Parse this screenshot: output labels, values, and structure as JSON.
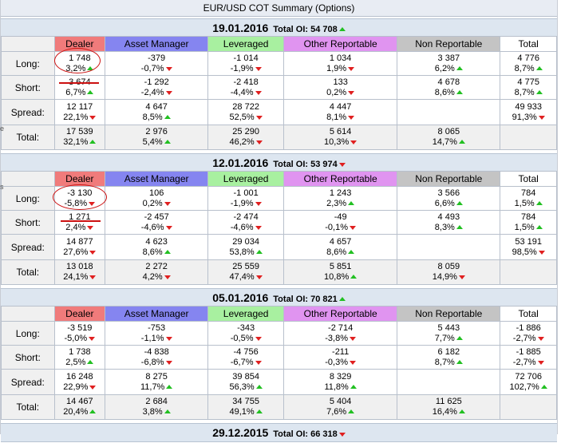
{
  "page_title": "EUR/USD COT Summary (Options)",
  "total_oi_label": "Total OI:",
  "headers": {
    "dealer": "Dealer",
    "asset_manager": "Asset Manager",
    "leveraged": "Leveraged",
    "other_reportable": "Other Reportable",
    "non_reportable": "Non Reportable",
    "total": "Total"
  },
  "row_labels": {
    "long": "Long:",
    "short": "Short:",
    "spread": "Spread:",
    "total": "Total:"
  },
  "colors": {
    "header_dealer": "#f07b7b",
    "header_asset_manager": "#8585f0",
    "header_leveraged": "#a8f0a0",
    "header_other_reportable": "#e094f0",
    "header_non_reportable": "#c4c4c4",
    "up": "#22c022",
    "down": "#e02020",
    "annotation": "#cc1010"
  },
  "icons": {
    "up": "triangle-up-icon",
    "down": "triangle-down-icon"
  },
  "sections": [
    {
      "date": "19.01.2016",
      "total_oi": "54 708",
      "total_oi_dir": "up",
      "rows": {
        "long": {
          "dealer": {
            "value": "1 748",
            "pct": "3,2%",
            "dir": "up"
          },
          "asset_manager": {
            "value": "-379",
            "pct": "-0,7%",
            "dir": "down"
          },
          "leveraged": {
            "value": "-1 014",
            "pct": "-1,9%",
            "dir": "down"
          },
          "other_reportable": {
            "value": "1 034",
            "pct": "1,9%",
            "dir": "down"
          },
          "non_reportable": {
            "value": "3 387",
            "pct": "6,2%",
            "dir": "up"
          },
          "total": {
            "value": "4 776",
            "pct": "8,7%",
            "dir": "up"
          }
        },
        "short": {
          "dealer": {
            "value": "3 674",
            "pct": "6,7%",
            "dir": "up"
          },
          "asset_manager": {
            "value": "-1 292",
            "pct": "-2,4%",
            "dir": "down"
          },
          "leveraged": {
            "value": "-2 418",
            "pct": "-4,4%",
            "dir": "down"
          },
          "other_reportable": {
            "value": "133",
            "pct": "0,2%",
            "dir": "down"
          },
          "non_reportable": {
            "value": "4 678",
            "pct": "8,6%",
            "dir": "up"
          },
          "total": {
            "value": "4 775",
            "pct": "8,7%",
            "dir": "up"
          }
        },
        "spread": {
          "dealer": {
            "value": "12 117",
            "pct": "22,1%",
            "dir": "down"
          },
          "asset_manager": {
            "value": "4 647",
            "pct": "8,5%",
            "dir": "up"
          },
          "leveraged": {
            "value": "28 722",
            "pct": "52,5%",
            "dir": "down"
          },
          "other_reportable": {
            "value": "4 447",
            "pct": "8,1%",
            "dir": "down"
          },
          "total": {
            "value": "49 933",
            "pct": "91,3%",
            "dir": "down"
          }
        },
        "total": {
          "dealer": {
            "value": "17 539",
            "pct": "32,1%",
            "dir": "up"
          },
          "asset_manager": {
            "value": "2 976",
            "pct": "5,4%",
            "dir": "up"
          },
          "leveraged": {
            "value": "25 290",
            "pct": "46,2%",
            "dir": "down"
          },
          "other_reportable": {
            "value": "5 614",
            "pct": "10,3%",
            "dir": "down"
          },
          "non_reportable": {
            "value": "8 065",
            "pct": "14,7%",
            "dir": "up"
          }
        }
      }
    },
    {
      "date": "12.01.2016",
      "total_oi": "53 974",
      "total_oi_dir": "down",
      "rows": {
        "long": {
          "dealer": {
            "value": "-3 130",
            "pct": "-5,8%",
            "dir": "down"
          },
          "asset_manager": {
            "value": "106",
            "pct": "0,2%",
            "dir": "down"
          },
          "leveraged": {
            "value": "-1 001",
            "pct": "-1,9%",
            "dir": "down"
          },
          "other_reportable": {
            "value": "1 243",
            "pct": "2,3%",
            "dir": "up"
          },
          "non_reportable": {
            "value": "3 566",
            "pct": "6,6%",
            "dir": "up"
          },
          "total": {
            "value": "784",
            "pct": "1,5%",
            "dir": "up"
          }
        },
        "short": {
          "dealer": {
            "value": "1 271",
            "pct": "2,4%",
            "dir": "down"
          },
          "asset_manager": {
            "value": "-2 457",
            "pct": "-4,6%",
            "dir": "down"
          },
          "leveraged": {
            "value": "-2 474",
            "pct": "-4,6%",
            "dir": "down"
          },
          "other_reportable": {
            "value": "-49",
            "pct": "-0,1%",
            "dir": "down"
          },
          "non_reportable": {
            "value": "4 493",
            "pct": "8,3%",
            "dir": "up"
          },
          "total": {
            "value": "784",
            "pct": "1,5%",
            "dir": "up"
          }
        },
        "spread": {
          "dealer": {
            "value": "14 877",
            "pct": "27,6%",
            "dir": "down"
          },
          "asset_manager": {
            "value": "4 623",
            "pct": "8,6%",
            "dir": "up"
          },
          "leveraged": {
            "value": "29 034",
            "pct": "53,8%",
            "dir": "up"
          },
          "other_reportable": {
            "value": "4 657",
            "pct": "8,6%",
            "dir": "up"
          },
          "total": {
            "value": "53 191",
            "pct": "98,5%",
            "dir": "down"
          }
        },
        "total": {
          "dealer": {
            "value": "13 018",
            "pct": "24,1%",
            "dir": "down"
          },
          "asset_manager": {
            "value": "2 272",
            "pct": "4,2%",
            "dir": "down"
          },
          "leveraged": {
            "value": "25 559",
            "pct": "47,4%",
            "dir": "down"
          },
          "other_reportable": {
            "value": "5 851",
            "pct": "10,8%",
            "dir": "up"
          },
          "non_reportable": {
            "value": "8 059",
            "pct": "14,9%",
            "dir": "down"
          }
        }
      }
    },
    {
      "date": "05.01.2016",
      "total_oi": "70 821",
      "total_oi_dir": "up",
      "rows": {
        "long": {
          "dealer": {
            "value": "-3 519",
            "pct": "-5,0%",
            "dir": "down"
          },
          "asset_manager": {
            "value": "-753",
            "pct": "-1,1%",
            "dir": "down"
          },
          "leveraged": {
            "value": "-343",
            "pct": "-0,5%",
            "dir": "down"
          },
          "other_reportable": {
            "value": "-2 714",
            "pct": "-3,8%",
            "dir": "down"
          },
          "non_reportable": {
            "value": "5 443",
            "pct": "7,7%",
            "dir": "up"
          },
          "total": {
            "value": "-1 886",
            "pct": "-2,7%",
            "dir": "down"
          }
        },
        "short": {
          "dealer": {
            "value": "1 738",
            "pct": "2,5%",
            "dir": "up"
          },
          "asset_manager": {
            "value": "-4 838",
            "pct": "-6,8%",
            "dir": "down"
          },
          "leveraged": {
            "value": "-4 756",
            "pct": "-6,7%",
            "dir": "down"
          },
          "other_reportable": {
            "value": "-211",
            "pct": "-0,3%",
            "dir": "down"
          },
          "non_reportable": {
            "value": "6 182",
            "pct": "8,7%",
            "dir": "up"
          },
          "total": {
            "value": "-1 885",
            "pct": "-2,7%",
            "dir": "down"
          }
        },
        "spread": {
          "dealer": {
            "value": "16 248",
            "pct": "22,9%",
            "dir": "down"
          },
          "asset_manager": {
            "value": "8 275",
            "pct": "11,7%",
            "dir": "up"
          },
          "leveraged": {
            "value": "39 854",
            "pct": "56,3%",
            "dir": "up"
          },
          "other_reportable": {
            "value": "8 329",
            "pct": "11,8%",
            "dir": "up"
          },
          "total": {
            "value": "72 706",
            "pct": "102,7%",
            "dir": "up"
          }
        },
        "total": {
          "dealer": {
            "value": "14 467",
            "pct": "20,4%",
            "dir": "up"
          },
          "asset_manager": {
            "value": "2 684",
            "pct": "3,8%",
            "dir": "up"
          },
          "leveraged": {
            "value": "34 755",
            "pct": "49,1%",
            "dir": "up"
          },
          "other_reportable": {
            "value": "5 404",
            "pct": "7,6%",
            "dir": "up"
          },
          "non_reportable": {
            "value": "11 625",
            "pct": "16,4%",
            "dir": "up"
          }
        }
      }
    },
    {
      "date": "29.12.2015",
      "total_oi": "66 318",
      "total_oi_dir": "down",
      "rows": {}
    }
  ]
}
